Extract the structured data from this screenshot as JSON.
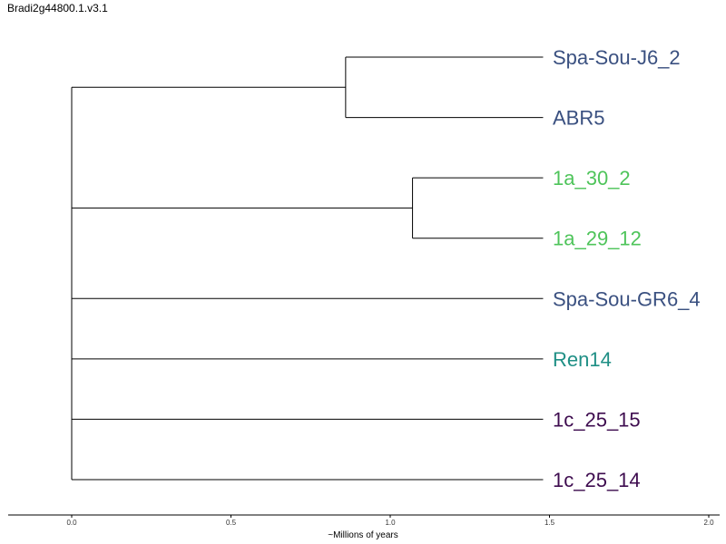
{
  "title": "Bradi2g44800.1.v3.1",
  "axis": {
    "label": "~Millions of years",
    "ticks": [
      "0.0",
      "0.5",
      "1.0",
      "1.5",
      "2.0"
    ],
    "range": [
      0.0,
      2.0
    ]
  },
  "colors": {
    "blue": "#3a5080",
    "green": "#4ec45a",
    "teal": "#1f8f85",
    "purple": "#3e0c4f"
  },
  "chart_data": {
    "type": "dendrogram",
    "leaves": [
      {
        "name": "Spa-Sou-J6_2",
        "color": "#3a5080"
      },
      {
        "name": "ABR5",
        "color": "#3a5080"
      },
      {
        "name": "1a_30_2",
        "color": "#4ec45a"
      },
      {
        "name": "1a_29_12",
        "color": "#4ec45a"
      },
      {
        "name": "Spa-Sou-GR6_4",
        "color": "#3a5080"
      },
      {
        "name": "Ren14",
        "color": "#1f8f85"
      },
      {
        "name": "1c_25_15",
        "color": "#3e0c4f"
      },
      {
        "name": "1c_25_14",
        "color": "#3e0c4f"
      }
    ],
    "tree": {
      "x": 0.0,
      "children": [
        {
          "x": 0.86,
          "children": [
            {
              "leaf": 0
            },
            {
              "leaf": 1
            }
          ]
        },
        {
          "x": 1.07,
          "children": [
            {
              "leaf": 2
            },
            {
              "leaf": 3
            }
          ]
        },
        {
          "leaf": 4
        },
        {
          "leaf": 5
        },
        {
          "leaf": 6
        },
        {
          "leaf": 7
        }
      ]
    },
    "leaf_x": 1.48
  }
}
